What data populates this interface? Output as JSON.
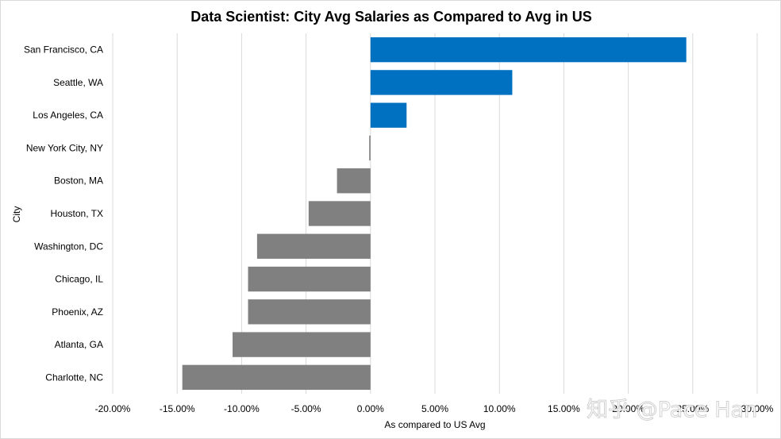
{
  "chart_data": {
    "type": "bar",
    "orientation": "horizontal",
    "title": "Data Scientist: City Avg Salaries as Compared to Avg in US",
    "xlabel": "As compared to US Avg",
    "ylabel": "City",
    "xlim": [
      -0.2,
      0.3
    ],
    "x_ticks": [
      -0.2,
      -0.15,
      -0.1,
      -0.05,
      0.0,
      0.05,
      0.1,
      0.15,
      0.2,
      0.25,
      0.3
    ],
    "x_tick_labels": [
      "-20.00%",
      "-15.00%",
      "-10.00%",
      "-5.00%",
      "0.00%",
      "5.00%",
      "10.00%",
      "15.00%",
      "20.00%",
      "25.00%",
      "30.00%"
    ],
    "categories": [
      "San Francisco, CA",
      "Seattle, WA",
      "Los Angeles, CA",
      "New York City, NY",
      "Boston, MA",
      "Houston, TX",
      "Washington, DC",
      "Chicago, IL",
      "Phoenix, AZ",
      "Atlanta, GA",
      "Charlotte, NC"
    ],
    "values": [
      0.245,
      0.11,
      0.028,
      -0.001,
      -0.026,
      -0.048,
      -0.088,
      -0.095,
      -0.095,
      -0.107,
      -0.146
    ],
    "colors": {
      "positive": "#0070c0",
      "negative": "#808080"
    },
    "grid": true,
    "legend": "none"
  },
  "watermark": "知乎 @Pace Han"
}
